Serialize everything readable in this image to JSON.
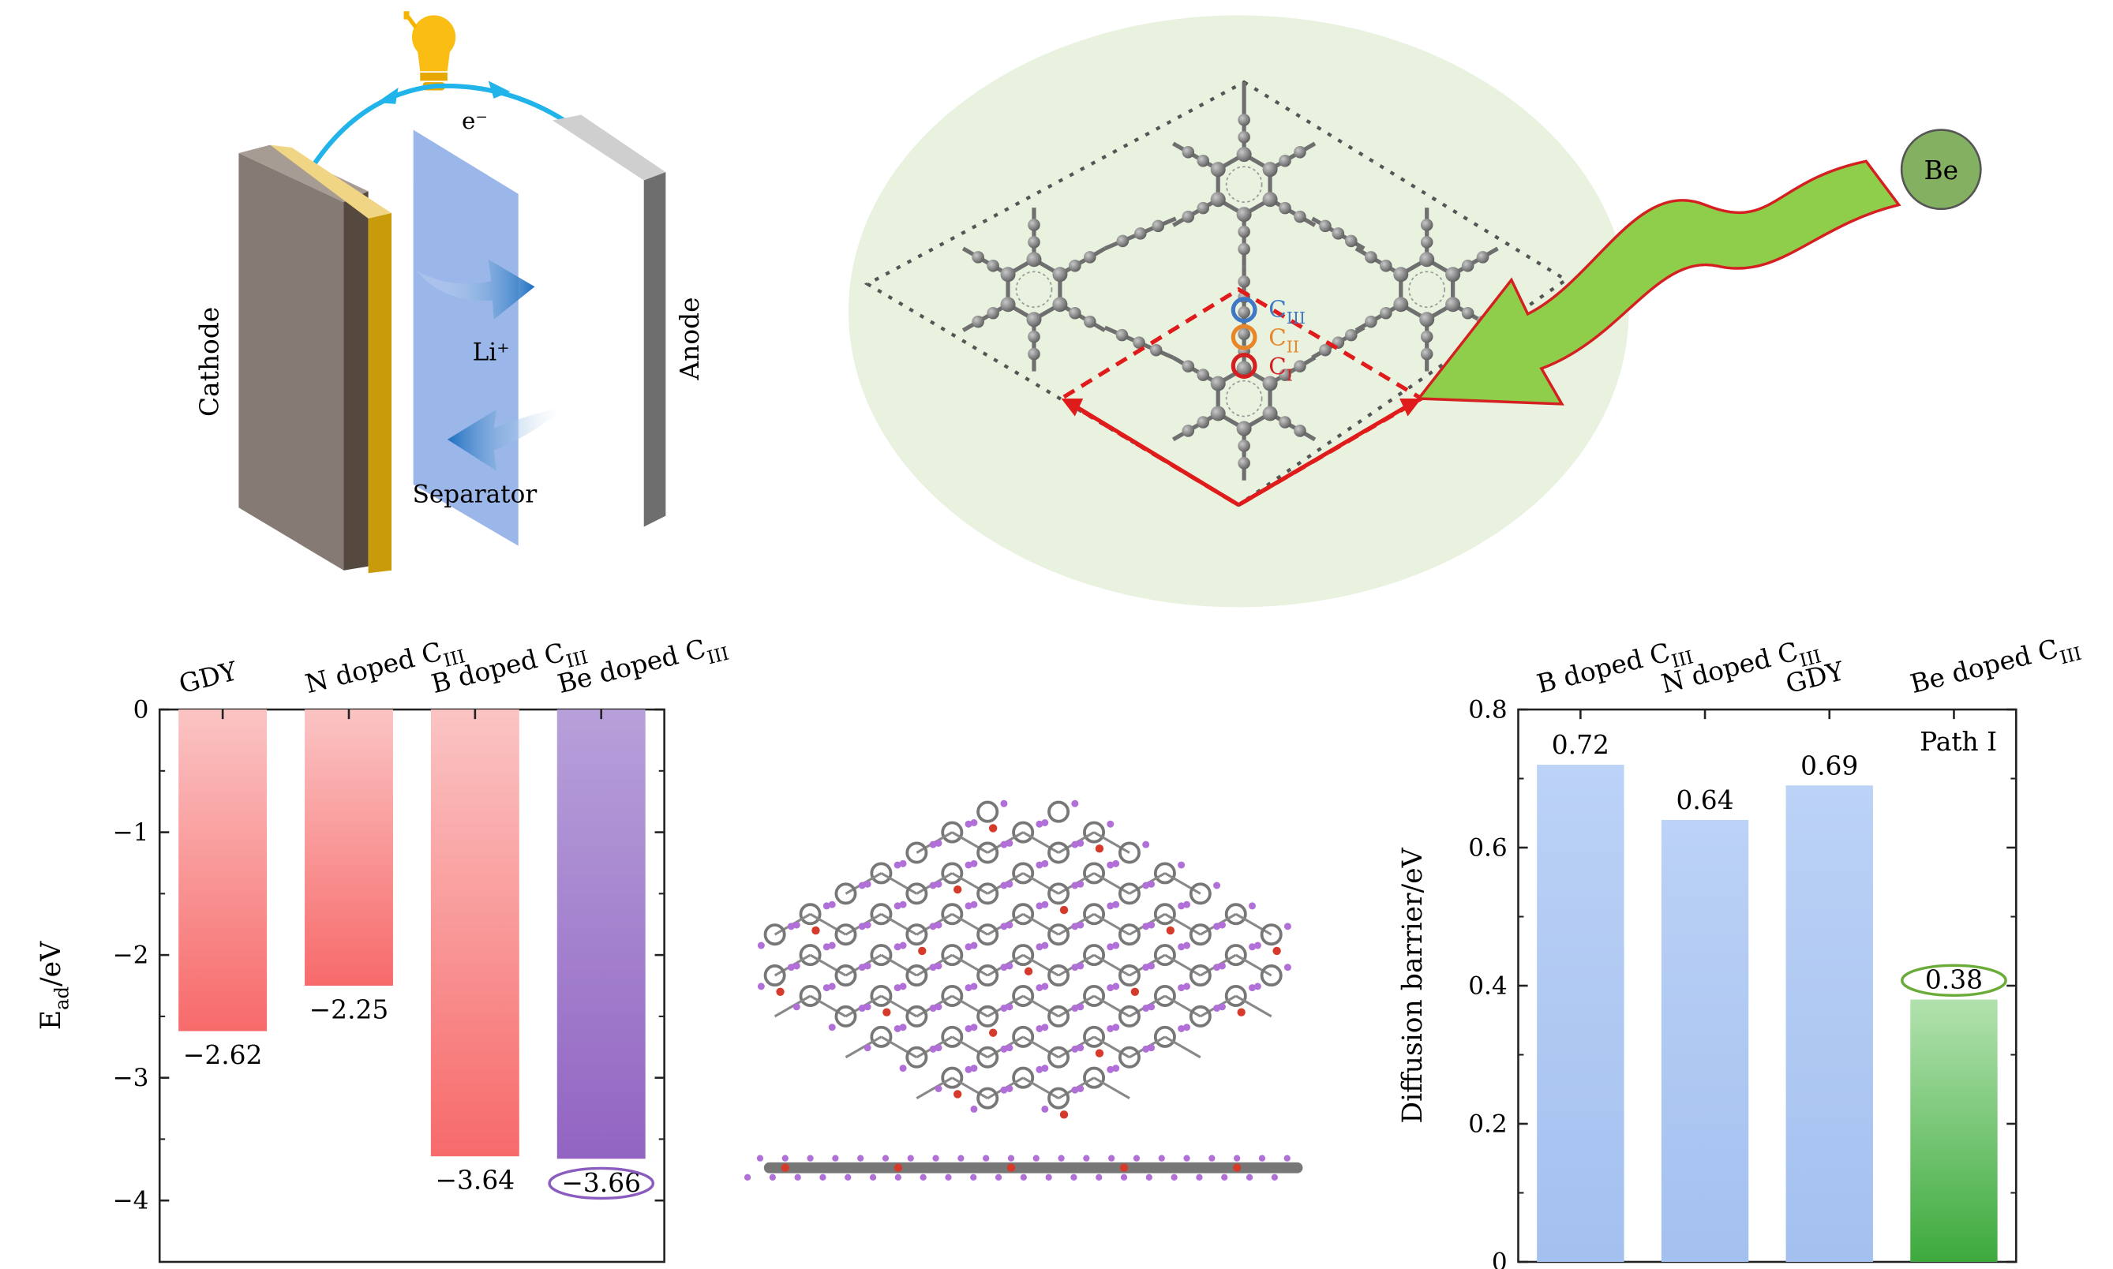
{
  "battery": {
    "electron_label": "e⁻",
    "cathode_label": "Cathode",
    "anode_label": "Anode",
    "ion_label": "Li⁺",
    "separator_label": "Separator"
  },
  "structure": {
    "site_labels": [
      {
        "base": "C",
        "sub": "III",
        "color": "#3f78c5"
      },
      {
        "base": "C",
        "sub": "II",
        "color": "#e8872a"
      },
      {
        "base": "C",
        "sub": "I",
        "color": "#d42020"
      }
    ],
    "dopant_label": "Be"
  },
  "chart_data": [
    {
      "type": "bar",
      "title": "",
      "categories": [
        {
          "base": "GDY",
          "sub": ""
        },
        {
          "base": "N doped C",
          "sub": "III"
        },
        {
          "base": "B doped C",
          "sub": "III"
        },
        {
          "base": "Be doped C",
          "sub": "III"
        }
      ],
      "values": [
        -2.62,
        -2.25,
        -3.64,
        -3.66
      ],
      "value_labels": [
        "−2.62",
        "−2.25",
        "−3.64",
        "−3.66"
      ],
      "ylabel": {
        "base": "E",
        "sub": "ad",
        "rest": "/eV"
      },
      "ylim": [
        -4.5,
        0
      ],
      "yticks": [
        0,
        -1,
        -2,
        -3,
        -4
      ],
      "ytick_labels": [
        "0",
        "−1",
        "−2",
        "−3",
        "−4"
      ],
      "xaxis_position": "top",
      "highlight_index": 3,
      "colors": [
        "#f78080",
        "#f78080",
        "#f78080",
        "#9b6fc4"
      ]
    },
    {
      "type": "bar",
      "title": "",
      "categories": [
        {
          "base": "B doped C",
          "sub": "III"
        },
        {
          "base": "N doped C",
          "sub": "III"
        },
        {
          "base": "GDY",
          "sub": ""
        },
        {
          "base": "Be doped C",
          "sub": "III"
        }
      ],
      "values": [
        0.72,
        0.64,
        0.69,
        0.38
      ],
      "value_labels": [
        "0.72",
        "0.64",
        "0.69",
        "0.38"
      ],
      "ylabel": {
        "base": "Diffusion barrier/eV",
        "sub": "",
        "rest": ""
      },
      "ylim": [
        0,
        0.8
      ],
      "yticks": [
        0,
        0.2,
        0.4,
        0.6,
        0.8
      ],
      "ytick_labels": [
        "0",
        "0.2",
        "0.4",
        "0.6",
        "0.8"
      ],
      "xaxis_position": "top",
      "annotation": "Path I",
      "highlight_index": 3,
      "colors": [
        "#aac6f2",
        "#aac6f2",
        "#aac6f2",
        "#4bb04b"
      ]
    }
  ]
}
